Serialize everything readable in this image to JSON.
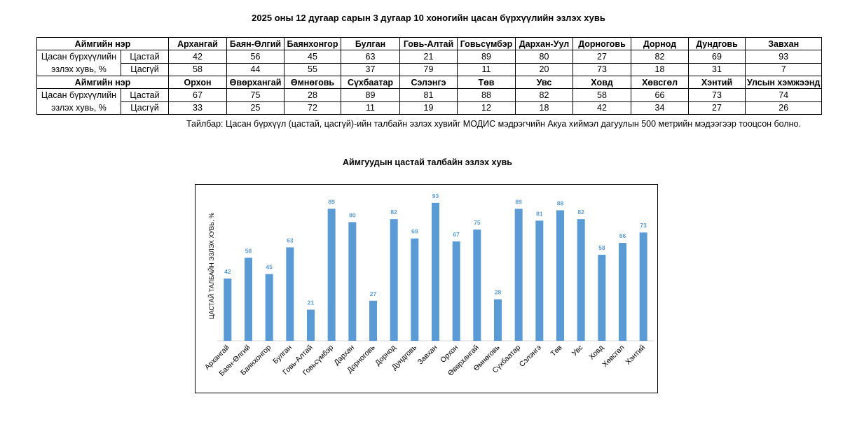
{
  "title": "2025 оны 12 дугаар сарын 3 дугаар 10 хоногийн цасан бүрхүүлийн эзлэх хувь",
  "table": {
    "blocks": [
      {
        "header_label": "Аймгийн нэр",
        "names": [
          "Архангай",
          "Баян-Өлгий",
          "Баянхонгор",
          "Булган",
          "Говь-Алтай",
          "Говьсүмбэр",
          "Дархан-Уул",
          "Дорноговь",
          "Дорнод",
          "Дундговь",
          "Завхан"
        ],
        "row_label": "Цасан бүрхүүлийн эзлэх хувь, %",
        "rows": [
          {
            "label": "Цастай",
            "values": [
              42,
              56,
              45,
              63,
              21,
              89,
              80,
              27,
              82,
              69,
              93
            ]
          },
          {
            "label": "Цасгүй",
            "values": [
              58,
              44,
              55,
              37,
              79,
              11,
              20,
              73,
              18,
              31,
              7
            ]
          }
        ]
      },
      {
        "header_label": "Аймгийн нэр",
        "names": [
          "Орхон",
          "Өвөрхангай",
          "Өмнөговь",
          "Сүхбаатар",
          "Сэлэнгэ",
          "Төв",
          "Увс",
          "Ховд",
          "Хөвсгөл",
          "Хэнтий",
          "Улсын хэмжээнд"
        ],
        "row_label": "Цасан бүрхүүлийн эзлэх хувь, %",
        "rows": [
          {
            "label": "Цастай",
            "values": [
              67,
              75,
              28,
              89,
              81,
              88,
              82,
              58,
              66,
              73,
              74
            ]
          },
          {
            "label": "Цасгүй",
            "values": [
              33,
              25,
              72,
              11,
              19,
              12,
              18,
              42,
              34,
              27,
              26
            ]
          }
        ]
      }
    ]
  },
  "note": "Тайлбар: Цасан бүрхүүл (цастай, цасгүй)-ийн талбайн эзлэх хувийг МОДИС мэдрэгчийн Акуа хиймэл дагуулын 500 метрийн мэдээгээр тооцсон болно.",
  "chart_data": {
    "type": "bar",
    "title": "Аймгуудын цастай талбайн эзлэх хувь",
    "y_label": "Цастай талбайн эзлэх хувь, %",
    "categories": [
      "Архангай",
      "Баян-Өлгий",
      "Баянхонгор",
      "Булган",
      "Говь-Алтай",
      "Говьсүмбэр",
      "Дархан",
      "Дорноговь",
      "Дорнод",
      "Дундговь",
      "Завхан",
      "Орхон",
      "Өвөрхангай",
      "Өмнөговь",
      "Сүхбаатар",
      "Сэлэнгэ",
      "Төв",
      "Увс",
      "Ховд",
      "Хөвсгөл",
      "Хэнтий"
    ],
    "values": [
      42,
      56,
      45,
      63,
      21,
      89,
      80,
      27,
      82,
      69,
      93,
      67,
      75,
      28,
      89,
      81,
      88,
      82,
      58,
      66,
      73
    ],
    "color": "#5b9bd5",
    "ylim": [
      0,
      100
    ]
  }
}
